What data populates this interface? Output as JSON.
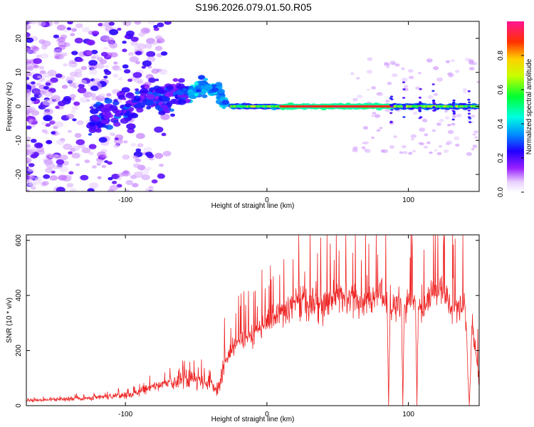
{
  "title": "S196.2026.079.01.50.R05",
  "chart_data": [
    {
      "type": "heatmap",
      "title": "S196.2026.079.01.50.R05",
      "xlabel": "Height of straight line (km)",
      "ylabel": "Frequency (Hz)",
      "xlim": [
        -170,
        150
      ],
      "ylim": [
        -25,
        25
      ],
      "xticks": [
        -100,
        0,
        100
      ],
      "yticks": [
        -20,
        -10,
        0,
        10,
        20
      ],
      "colorbar": {
        "label": "Normalized spectral amplitude",
        "range": [
          0.0,
          1.0
        ],
        "ticks": [
          0.0,
          0.2,
          0.4,
          0.6,
          0.8
        ],
        "tick_labels": [
          "0.0",
          "0.2",
          "0.4",
          "0.6",
          "0.8"
        ],
        "colormap": [
          "#ffffff",
          "#d9b3ff",
          "#8a00ff",
          "#0000ff",
          "#00ffff",
          "#00ff00",
          "#ffff00",
          "#ff8800",
          "#ff0000",
          "#ff1493"
        ]
      },
      "features": [
        {
          "description": "broad scattered noise",
          "x_range": [
            -170,
            -90
          ],
          "freq_range": [
            -25,
            25
          ],
          "amplitude": [
            0.05,
            0.3
          ]
        },
        {
          "description": "rising signal track",
          "points": [
            [
              -120,
              -4
            ],
            [
              -100,
              0
            ],
            [
              -80,
              3
            ],
            [
              -60,
              3
            ],
            [
              -45,
              6
            ],
            [
              -35,
              5
            ],
            [
              -28,
              0
            ]
          ],
          "amplitude": [
            0.2,
            0.5
          ]
        },
        {
          "description": "strong flat line at 0 Hz",
          "x_range": [
            -25,
            150
          ],
          "freq": 0,
          "amplitude": [
            0.5,
            0.95
          ]
        },
        {
          "description": "strongest segment",
          "x_range": [
            10,
            90
          ],
          "freq": 0,
          "amplitude": [
            0.85,
            0.95
          ]
        }
      ]
    },
    {
      "type": "line",
      "xlabel": "Height of straight line (km)",
      "ylabel": "SNR (10 * v/v)",
      "xlim": [
        -170,
        150
      ],
      "ylim": [
        0,
        620
      ],
      "xticks": [
        -100,
        0,
        100
      ],
      "yticks": [
        0,
        200,
        400,
        600
      ],
      "color": "#ee2222",
      "series": [
        {
          "name": "SNR",
          "x": [
            -170,
            -160,
            -150,
            -140,
            -130,
            -120,
            -110,
            -100,
            -90,
            -80,
            -70,
            -60,
            -50,
            -40,
            -35,
            -30,
            -25,
            -20,
            -15,
            -10,
            -5,
            0,
            5,
            10,
            15,
            20,
            25,
            30,
            35,
            40,
            45,
            50,
            55,
            60,
            65,
            70,
            75,
            80,
            85,
            86,
            87,
            90,
            95,
            96,
            97,
            100,
            105,
            106,
            107,
            110,
            115,
            120,
            125,
            130,
            135,
            140,
            143,
            145,
            148,
            150
          ],
          "values": [
            20,
            20,
            22,
            25,
            25,
            30,
            35,
            40,
            50,
            70,
            80,
            90,
            95,
            80,
            50,
            150,
            200,
            230,
            250,
            260,
            280,
            300,
            320,
            330,
            350,
            370,
            380,
            380,
            370,
            370,
            380,
            390,
            400,
            390,
            370,
            370,
            390,
            400,
            380,
            0,
            330,
            390,
            380,
            0,
            370,
            380,
            370,
            0,
            360,
            330,
            400,
            440,
            420,
            360,
            350,
            380,
            0,
            300,
            180,
            100
          ]
        }
      ]
    }
  ]
}
